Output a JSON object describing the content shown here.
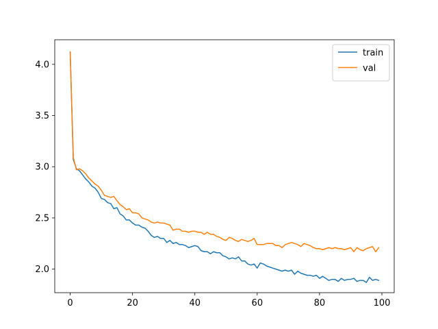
{
  "chart_data": {
    "type": "line",
    "title": "",
    "xlabel": "",
    "ylabel": "",
    "xlim": [
      -4.95,
      103.95
    ],
    "ylim": [
      1.77,
      4.24
    ],
    "xticks": [
      0,
      20,
      40,
      60,
      80,
      100
    ],
    "yticks": [
      2.0,
      2.5,
      3.0,
      3.5,
      4.0
    ],
    "xtick_labels": [
      "0",
      "20",
      "40",
      "60",
      "80",
      "100"
    ],
    "ytick_labels": [
      "2.0",
      "2.5",
      "3.0",
      "3.5",
      "4.0"
    ],
    "grid": false,
    "legend_position": "top-right",
    "x": [
      0,
      1,
      2,
      3,
      4,
      5,
      6,
      7,
      8,
      9,
      10,
      11,
      12,
      13,
      14,
      15,
      16,
      17,
      18,
      19,
      20,
      21,
      22,
      23,
      24,
      25,
      26,
      27,
      28,
      29,
      30,
      31,
      32,
      33,
      34,
      35,
      36,
      37,
      38,
      39,
      40,
      41,
      42,
      43,
      44,
      45,
      46,
      47,
      48,
      49,
      50,
      51,
      52,
      53,
      54,
      55,
      56,
      57,
      58,
      59,
      60,
      61,
      62,
      63,
      64,
      65,
      66,
      67,
      68,
      69,
      70,
      71,
      72,
      73,
      74,
      75,
      76,
      77,
      78,
      79,
      80,
      81,
      82,
      83,
      84,
      85,
      86,
      87,
      88,
      89,
      90,
      91,
      92,
      93,
      94,
      95,
      96,
      97,
      98,
      99
    ],
    "series": [
      {
        "name": "train",
        "color": "#1f77b4",
        "values": [
          4.12,
          3.07,
          2.98,
          2.96,
          2.92,
          2.88,
          2.85,
          2.81,
          2.79,
          2.75,
          2.69,
          2.68,
          2.65,
          2.64,
          2.59,
          2.6,
          2.54,
          2.52,
          2.48,
          2.48,
          2.45,
          2.43,
          2.43,
          2.41,
          2.4,
          2.37,
          2.33,
          2.31,
          2.32,
          2.3,
          2.3,
          2.26,
          2.28,
          2.25,
          2.26,
          2.24,
          2.24,
          2.23,
          2.21,
          2.22,
          2.23,
          2.22,
          2.18,
          2.17,
          2.17,
          2.15,
          2.17,
          2.16,
          2.16,
          2.13,
          2.12,
          2.1,
          2.11,
          2.1,
          2.12,
          2.08,
          2.08,
          2.05,
          2.04,
          2.05,
          2.01,
          2.06,
          2.05,
          2.03,
          2.02,
          2.01,
          2.0,
          1.99,
          1.98,
          1.99,
          1.98,
          1.99,
          1.95,
          1.98,
          1.96,
          1.95,
          1.94,
          1.94,
          1.93,
          1.94,
          1.91,
          1.93,
          1.91,
          1.89,
          1.9,
          1.9,
          1.88,
          1.91,
          1.89,
          1.9,
          1.9,
          1.91,
          1.88,
          1.89,
          1.89,
          1.87,
          1.92,
          1.89,
          1.9,
          1.89
        ]
      },
      {
        "name": "val",
        "color": "#ff7f0e",
        "values": [
          4.12,
          3.09,
          2.97,
          2.98,
          2.96,
          2.93,
          2.89,
          2.86,
          2.83,
          2.81,
          2.77,
          2.72,
          2.71,
          2.7,
          2.71,
          2.67,
          2.63,
          2.61,
          2.58,
          2.59,
          2.55,
          2.55,
          2.54,
          2.5,
          2.49,
          2.48,
          2.46,
          2.45,
          2.46,
          2.45,
          2.45,
          2.44,
          2.43,
          2.38,
          2.39,
          2.39,
          2.37,
          2.37,
          2.36,
          2.37,
          2.37,
          2.36,
          2.36,
          2.34,
          2.36,
          2.34,
          2.34,
          2.32,
          2.31,
          2.29,
          2.28,
          2.31,
          2.3,
          2.28,
          2.27,
          2.29,
          2.28,
          2.27,
          2.28,
          2.3,
          2.24,
          2.24,
          2.24,
          2.25,
          2.25,
          2.25,
          2.23,
          2.23,
          2.21,
          2.24,
          2.25,
          2.26,
          2.25,
          2.24,
          2.22,
          2.25,
          2.24,
          2.23,
          2.21,
          2.2,
          2.2,
          2.19,
          2.2,
          2.21,
          2.2,
          2.21,
          2.2,
          2.2,
          2.19,
          2.2,
          2.21,
          2.17,
          2.21,
          2.19,
          2.18,
          2.2,
          2.21,
          2.22,
          2.17,
          2.21
        ]
      }
    ]
  }
}
